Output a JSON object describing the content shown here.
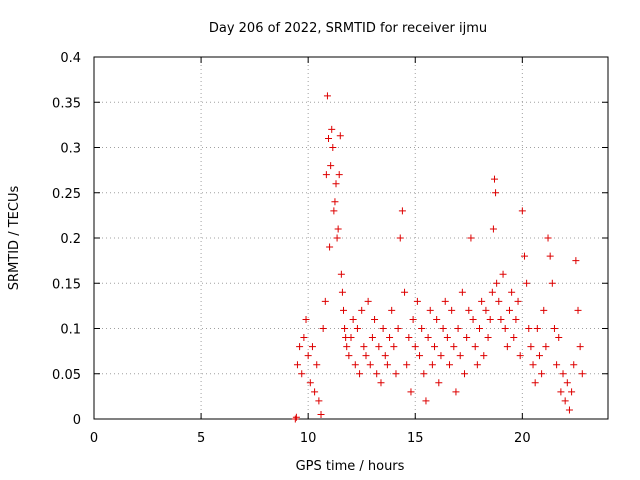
{
  "chart_data": {
    "type": "scatter",
    "title": "Day 206 of 2022, SRMTID for receiver ijmu",
    "xlabel": "GPS time / hours",
    "ylabel": "SRMTID / TECUs",
    "xlim": [
      0,
      24
    ],
    "ylim": [
      0,
      0.4
    ],
    "xticks": [
      0,
      5,
      10,
      15,
      20
    ],
    "xtick_labels": [
      "0",
      "5",
      "10",
      "15",
      "20"
    ],
    "yticks": [
      0,
      0.05,
      0.1,
      0.15,
      0.2,
      0.25,
      0.3,
      0.35,
      0.4
    ],
    "ytick_labels": [
      "0",
      "0.05",
      "0.1",
      "0.15",
      "0.2",
      "0.25",
      "0.3",
      "0.35",
      "0.4"
    ],
    "grid": true,
    "marker": "+",
    "color": "#dd0000",
    "series": [
      {
        "name": "SRMTID",
        "x": [
          9.4,
          9.45,
          9.5,
          9.6,
          9.7,
          9.8,
          9.9,
          10.0,
          10.1,
          10.2,
          10.3,
          10.4,
          10.5,
          10.6,
          10.7,
          10.8,
          10.85,
          10.9,
          10.95,
          11.0,
          11.05,
          11.1,
          11.15,
          11.2,
          11.25,
          11.3,
          11.35,
          11.4,
          11.45,
          11.5,
          11.55,
          11.6,
          11.65,
          11.7,
          11.75,
          11.8,
          11.9,
          12.0,
          12.1,
          12.2,
          12.3,
          12.4,
          12.5,
          12.6,
          12.7,
          12.8,
          12.9,
          13.0,
          13.1,
          13.2,
          13.3,
          13.4,
          13.5,
          13.6,
          13.7,
          13.8,
          13.9,
          14.0,
          14.1,
          14.2,
          14.3,
          14.4,
          14.5,
          14.6,
          14.7,
          14.8,
          14.9,
          15.0,
          15.1,
          15.2,
          15.3,
          15.4,
          15.5,
          15.6,
          15.7,
          15.8,
          15.9,
          16.0,
          16.1,
          16.2,
          16.3,
          16.4,
          16.5,
          16.6,
          16.7,
          16.8,
          16.9,
          17.0,
          17.1,
          17.2,
          17.3,
          17.4,
          17.5,
          17.6,
          17.7,
          17.8,
          17.9,
          18.0,
          18.1,
          18.2,
          18.3,
          18.4,
          18.5,
          18.6,
          18.65,
          18.7,
          18.75,
          18.8,
          18.9,
          19.0,
          19.1,
          19.2,
          19.3,
          19.4,
          19.5,
          19.6,
          19.7,
          19.8,
          19.9,
          20.0,
          20.1,
          20.2,
          20.3,
          20.4,
          20.5,
          20.6,
          20.7,
          20.8,
          20.9,
          21.0,
          21.1,
          21.2,
          21.3,
          21.4,
          21.5,
          21.6,
          21.7,
          21.8,
          21.9,
          22.0,
          22.1,
          22.2,
          22.3,
          22.4,
          22.5,
          22.6,
          22.7,
          22.8
        ],
        "y": [
          0.0,
          0.002,
          0.06,
          0.08,
          0.05,
          0.09,
          0.11,
          0.07,
          0.04,
          0.08,
          0.03,
          0.06,
          0.02,
          0.005,
          0.1,
          0.13,
          0.27,
          0.357,
          0.31,
          0.19,
          0.28,
          0.32,
          0.3,
          0.23,
          0.24,
          0.26,
          0.2,
          0.21,
          0.27,
          0.313,
          0.16,
          0.14,
          0.12,
          0.1,
          0.09,
          0.08,
          0.07,
          0.09,
          0.11,
          0.06,
          0.1,
          0.05,
          0.12,
          0.08,
          0.07,
          0.13,
          0.06,
          0.09,
          0.11,
          0.05,
          0.08,
          0.04,
          0.1,
          0.07,
          0.06,
          0.09,
          0.12,
          0.08,
          0.05,
          0.1,
          0.2,
          0.23,
          0.14,
          0.06,
          0.09,
          0.03,
          0.11,
          0.08,
          0.13,
          0.07,
          0.1,
          0.05,
          0.02,
          0.09,
          0.12,
          0.06,
          0.08,
          0.11,
          0.04,
          0.07,
          0.1,
          0.13,
          0.09,
          0.06,
          0.12,
          0.08,
          0.03,
          0.1,
          0.07,
          0.14,
          0.05,
          0.09,
          0.12,
          0.2,
          0.11,
          0.08,
          0.06,
          0.1,
          0.13,
          0.07,
          0.12,
          0.09,
          0.11,
          0.14,
          0.21,
          0.265,
          0.25,
          0.15,
          0.13,
          0.11,
          0.16,
          0.1,
          0.08,
          0.12,
          0.14,
          0.09,
          0.11,
          0.13,
          0.07,
          0.23,
          0.18,
          0.15,
          0.1,
          0.08,
          0.06,
          0.04,
          0.1,
          0.07,
          0.05,
          0.12,
          0.08,
          0.2,
          0.18,
          0.15,
          0.1,
          0.06,
          0.09,
          0.03,
          0.05,
          0.02,
          0.04,
          0.01,
          0.03,
          0.06,
          0.175,
          0.12,
          0.08,
          0.05
        ]
      }
    ]
  }
}
